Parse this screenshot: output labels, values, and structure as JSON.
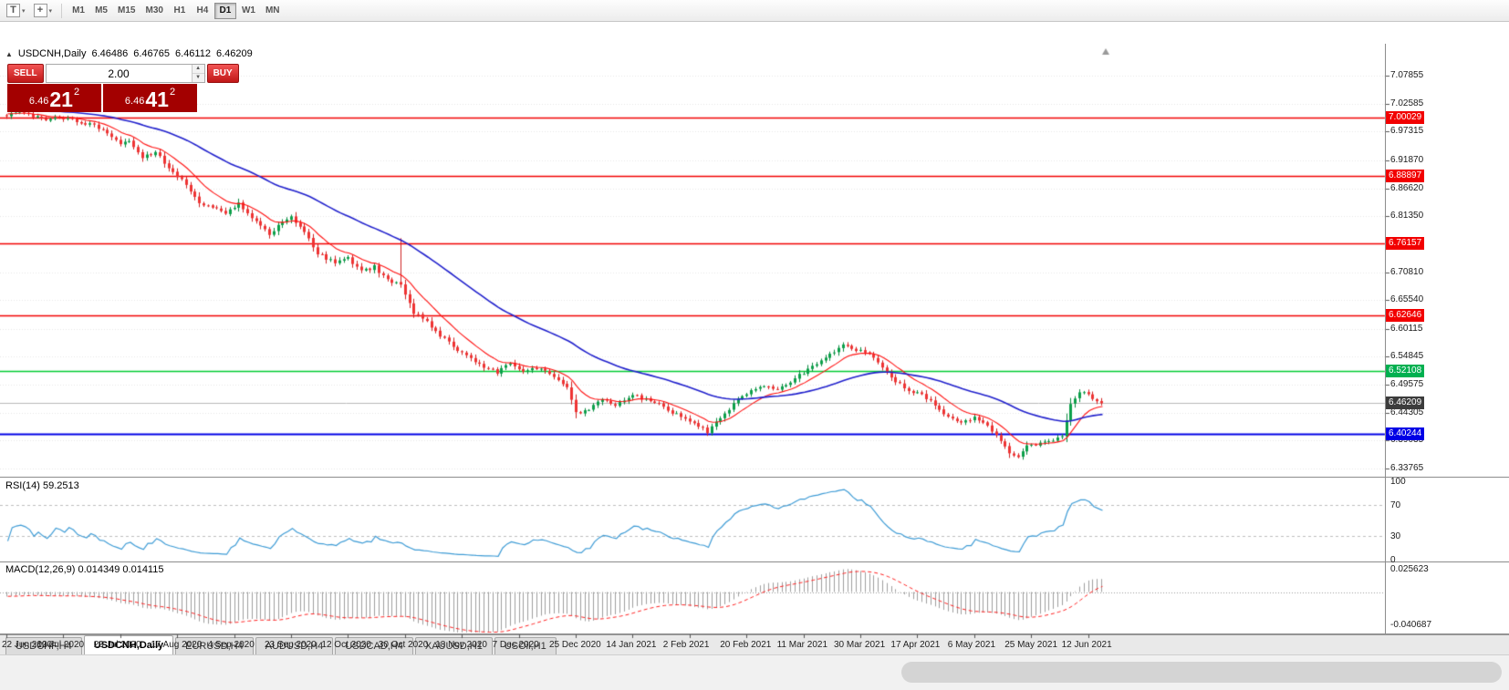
{
  "toolbar": {
    "buttons": [
      {
        "glyph": "T",
        "caret": "▾"
      },
      {
        "glyph": "+",
        "caret": "▾"
      }
    ],
    "timeframes": [
      {
        "label": "M1",
        "active": false
      },
      {
        "label": "M5",
        "active": false
      },
      {
        "label": "M15",
        "active": false
      },
      {
        "label": "M30",
        "active": false
      },
      {
        "label": "H1",
        "active": false
      },
      {
        "label": "H4",
        "active": false
      },
      {
        "label": "D1",
        "active": true
      },
      {
        "label": "W1",
        "active": false
      },
      {
        "label": "MN",
        "active": false
      }
    ]
  },
  "chart": {
    "title": {
      "collapse_icon": "▲",
      "symbol": "USDCNH,Daily",
      "open": "6.46486",
      "high": "6.46765",
      "low": "6.46112",
      "close": "6.46209"
    },
    "one_click": {
      "sell_label": "SELL",
      "buy_label": "BUY",
      "volume": "2.00",
      "sell_price": {
        "base": "6.46",
        "pips": "21",
        "frac": "2"
      },
      "buy_price": {
        "base": "6.46",
        "pips": "41",
        "frac": "2"
      }
    },
    "price_axis_labels": [
      {
        "text": "7.07855",
        "price": 7.07855
      },
      {
        "text": "7.02585",
        "price": 7.02585
      },
      {
        "text": "6.97315",
        "price": 6.97315
      },
      {
        "text": "6.91870",
        "price": 6.9187
      },
      {
        "text": "6.86620",
        "price": 6.8662
      },
      {
        "text": "6.81350",
        "price": 6.8135
      },
      {
        "text": "6.70810",
        "price": 6.7081
      },
      {
        "text": "6.65540",
        "price": 6.6554
      },
      {
        "text": "6.60115",
        "price": 6.60115
      },
      {
        "text": "6.54845",
        "price": 6.54845
      },
      {
        "text": "6.49575",
        "price": 6.49575
      },
      {
        "text": "6.44305",
        "price": 6.44305
      },
      {
        "text": "6.39035",
        "price": 6.39035
      },
      {
        "text": "6.33765",
        "price": 6.33765
      }
    ],
    "price_badges": [
      {
        "text": "7.00029",
        "price": 7.00029,
        "color": "#f20000"
      },
      {
        "text": "6.88897",
        "price": 6.88897,
        "color": "#f20000"
      },
      {
        "text": "6.76157",
        "price": 6.76157,
        "color": "#f20000"
      },
      {
        "text": "6.62646",
        "price": 6.62646,
        "color": "#f20000"
      },
      {
        "text": "6.52108",
        "price": 6.52108,
        "color": "#00b050"
      },
      {
        "text": "6.46209",
        "price": 6.46209,
        "color": "#3c3c3c"
      },
      {
        "text": "6.40244",
        "price": 6.40244,
        "color": "#0000e6"
      }
    ],
    "dates": [
      "22 Jun 2020",
      "10 Jul 2020",
      "29 Jul 2020",
      "17 Aug 2020",
      "4 Sep 2020",
      "23 Sep 2020",
      "12 Oct 2020",
      "30 Oct 2020",
      "18 Nov 2020",
      "7 Dec 2020",
      "25 Dec 2020",
      "14 Jan 2021",
      "2 Feb 2021",
      "20 Feb 2021",
      "11 Mar 2021",
      "30 Mar 2021",
      "17 Apr 2021",
      "6 May 2021",
      "25 May 2021",
      "12 Jun 2021"
    ],
    "rsi": {
      "label": "RSI(14) 59.2513",
      "scale": [
        {
          "text": "100",
          "value": 100
        },
        {
          "text": "70",
          "value": 70
        },
        {
          "text": "30",
          "value": 30
        },
        {
          "text": "0",
          "value": 0
        }
      ]
    },
    "macd": {
      "label": "MACD(12,26,9) 0.014349 0.014115",
      "scale_top": "0.025623",
      "scale_bottom": "-0.040687"
    }
  },
  "chart_data": {
    "type": "candlestick",
    "symbol": "USDCNH",
    "period": "Daily",
    "last_ohlc": {
      "open": 6.46486,
      "high": 6.46765,
      "low": 6.46112,
      "close": 6.46209
    },
    "price_top": 7.1044,
    "price_bottom": 6.3256,
    "candle_count": 251,
    "close_anchors": [
      [
        0,
        7.004
      ],
      [
        4,
        7.01
      ],
      [
        8,
        6.996
      ],
      [
        12,
        7.001
      ],
      [
        16,
        6.993
      ],
      [
        20,
        6.985
      ],
      [
        23,
        6.972
      ],
      [
        26,
        6.95
      ],
      [
        28,
        6.958
      ],
      [
        31,
        6.924
      ],
      [
        34,
        6.933
      ],
      [
        38,
        6.898
      ],
      [
        41,
        6.873
      ],
      [
        44,
        6.838
      ],
      [
        47,
        6.83
      ],
      [
        50,
        6.821
      ],
      [
        53,
        6.838
      ],
      [
        57,
        6.804
      ],
      [
        60,
        6.778
      ],
      [
        62,
        6.795
      ],
      [
        65,
        6.812
      ],
      [
        68,
        6.786
      ],
      [
        71,
        6.743
      ],
      [
        75,
        6.726
      ],
      [
        78,
        6.734
      ],
      [
        81,
        6.709
      ],
      [
        84,
        6.718
      ],
      [
        87,
        6.692
      ],
      [
        90,
        6.683
      ],
      [
        93,
        6.631
      ],
      [
        96,
        6.614
      ],
      [
        99,
        6.588
      ],
      [
        103,
        6.562
      ],
      [
        106,
        6.545
      ],
      [
        109,
        6.528
      ],
      [
        112,
        6.519
      ],
      [
        115,
        6.536
      ],
      [
        118,
        6.519
      ],
      [
        121,
        6.528
      ],
      [
        125,
        6.511
      ],
      [
        128,
        6.493
      ],
      [
        130,
        6.442
      ],
      [
        133,
        6.45
      ],
      [
        136,
        6.467
      ],
      [
        139,
        6.459
      ],
      [
        143,
        6.476
      ],
      [
        146,
        6.467
      ],
      [
        149,
        6.459
      ],
      [
        152,
        6.442
      ],
      [
        155,
        6.433
      ],
      [
        158,
        6.416
      ],
      [
        160,
        6.407
      ],
      [
        164,
        6.442
      ],
      [
        167,
        6.467
      ],
      [
        170,
        6.484
      ],
      [
        173,
        6.493
      ],
      [
        176,
        6.484
      ],
      [
        179,
        6.502
      ],
      [
        182,
        6.519
      ],
      [
        185,
        6.536
      ],
      [
        188,
        6.553
      ],
      [
        191,
        6.571
      ],
      [
        194,
        6.562
      ],
      [
        197,
        6.553
      ],
      [
        200,
        6.528
      ],
      [
        203,
        6.502
      ],
      [
        206,
        6.484
      ],
      [
        209,
        6.476
      ],
      [
        212,
        6.459
      ],
      [
        215,
        6.433
      ],
      [
        218,
        6.424
      ],
      [
        221,
        6.433
      ],
      [
        224,
        6.416
      ],
      [
        227,
        6.39
      ],
      [
        229,
        6.364
      ],
      [
        231,
        6.357
      ],
      [
        233,
        6.381
      ],
      [
        236,
        6.386
      ],
      [
        239,
        6.39
      ],
      [
        241,
        6.399
      ],
      [
        243,
        6.459
      ],
      [
        245,
        6.484
      ],
      [
        247,
        6.476
      ],
      [
        250,
        6.462
      ]
    ],
    "spikes": [
      {
        "i": 90,
        "h": 6.772
      }
    ],
    "hlines": [
      {
        "price": 7.00029,
        "color": "#f20000",
        "width": 1.4
      },
      {
        "price": 6.88897,
        "color": "#f20000",
        "width": 1.4
      },
      {
        "price": 6.76157,
        "color": "#f20000",
        "width": 1.4
      },
      {
        "price": 6.62646,
        "color": "#f20000",
        "width": 1.4
      },
      {
        "price": 6.52108,
        "color": "#00cc33",
        "width": 1.6
      },
      {
        "price": 6.40244,
        "color": "#0000e6",
        "width": 2.2
      },
      {
        "price": 6.46209,
        "color": "#b8b8b8",
        "width": 1
      }
    ],
    "ma_overlays": [
      {
        "type": "ema",
        "period": 10,
        "color": "#ff1111",
        "width": 1.1
      },
      {
        "type": "ema",
        "period": 45,
        "color": "#2020cc",
        "width": 1.6
      }
    ],
    "rsi": {
      "period": 14,
      "current": 59.2513,
      "levels": [
        70,
        30
      ],
      "color": "#3d9bd5"
    },
    "macd": {
      "fast": 12,
      "slow": 26,
      "signal_period": 9,
      "macd_value": 0.014349,
      "signal_value": 0.014115,
      "scale_max": 0.025623,
      "scale_min": -0.040687,
      "histogram_color": "#9e9e9e",
      "signal_color": "#ff2020"
    }
  },
  "tabs": [
    {
      "label": "USDCHF,H4",
      "active": false
    },
    {
      "label": "USDCNH,Daily",
      "active": true
    },
    {
      "label": "EURUSD,H4",
      "active": false
    },
    {
      "label": "AUDUSD,H4",
      "active": false
    },
    {
      "label": "USDCAD,H4",
      "active": false
    },
    {
      "label": "XAUUSD,H1",
      "active": false
    },
    {
      "label": "USOil,H1",
      "active": false
    }
  ]
}
